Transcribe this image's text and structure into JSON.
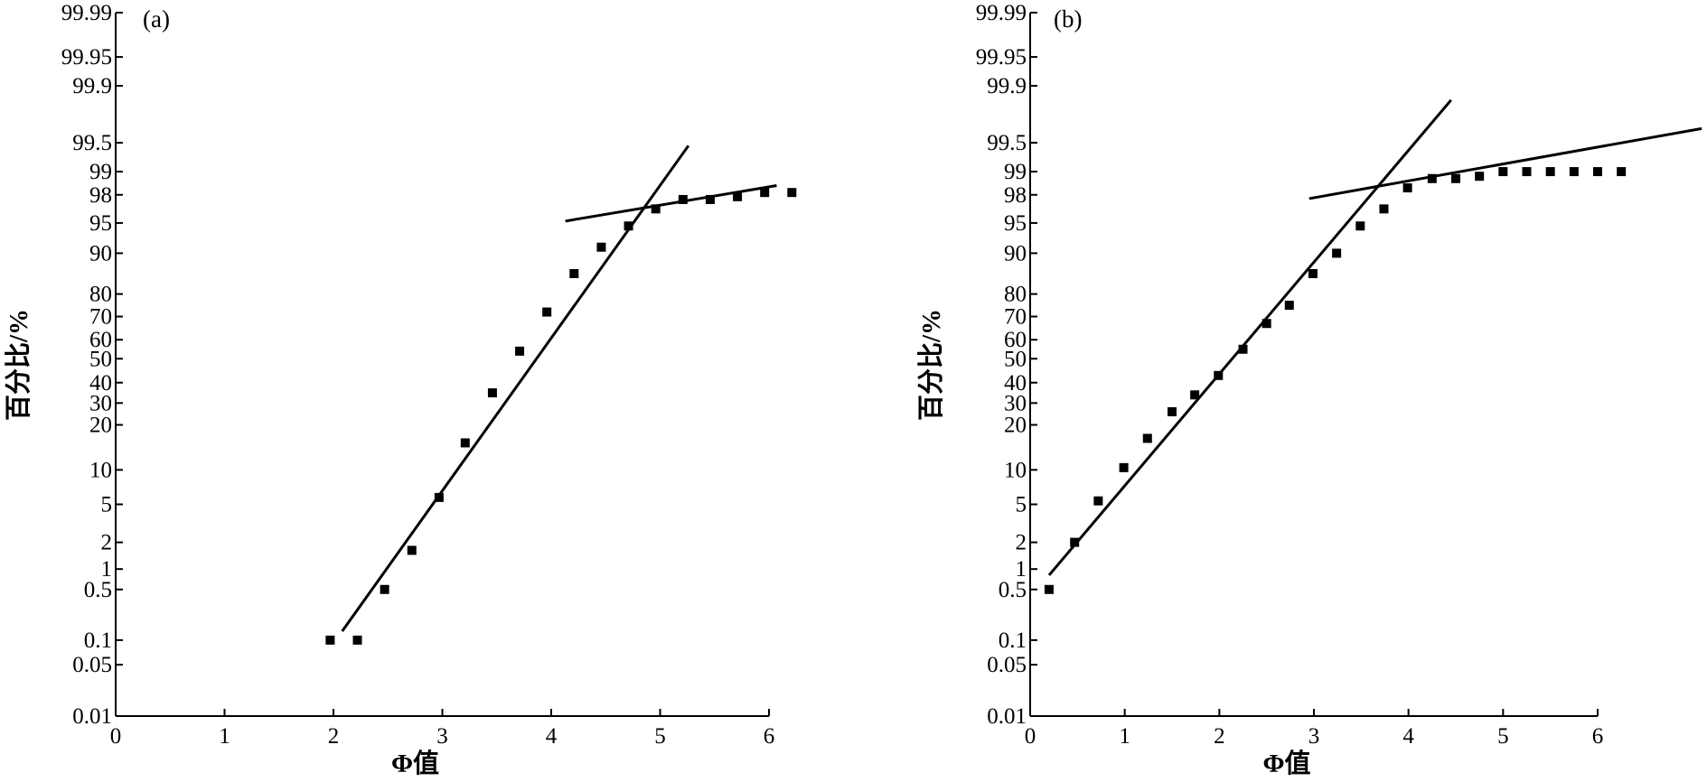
{
  "chart_data": [
    {
      "type": "scatter",
      "panel_label": "(a)",
      "xlabel": "Φ值",
      "ylabel": "百分比/%",
      "xlim": [
        0,
        6
      ],
      "y_scale": "probability",
      "x_ticks": [
        "0",
        "1",
        "2",
        "3",
        "4",
        "5",
        "6"
      ],
      "y_ticks": [
        "0.01",
        "0.05",
        "0.1",
        "0.5",
        "1",
        "2",
        "5",
        "10",
        "20",
        "30",
        "40",
        "50",
        "60",
        "70",
        "80",
        "90",
        "95",
        "98",
        "99",
        "99.5",
        "99.9",
        "99.95",
        "99.99"
      ],
      "points": [
        {
          "x": 1.97,
          "y": 0.1
        },
        {
          "x": 2.22,
          "y": 0.1
        },
        {
          "x": 2.47,
          "y": 0.5
        },
        {
          "x": 2.72,
          "y": 1.7
        },
        {
          "x": 2.97,
          "y": 6
        },
        {
          "x": 3.21,
          "y": 16
        },
        {
          "x": 3.46,
          "y": 35
        },
        {
          "x": 3.71,
          "y": 54
        },
        {
          "x": 3.96,
          "y": 72
        },
        {
          "x": 4.21,
          "y": 85
        },
        {
          "x": 4.46,
          "y": 91
        },
        {
          "x": 4.71,
          "y": 94.5
        },
        {
          "x": 4.96,
          "y": 96.5
        },
        {
          "x": 5.21,
          "y": 97.5
        },
        {
          "x": 5.46,
          "y": 97.5
        },
        {
          "x": 5.71,
          "y": 97.8
        },
        {
          "x": 5.96,
          "y": 98.1
        },
        {
          "x": 6.21,
          "y": 98.1
        }
      ],
      "fit_lines": [
        {
          "x": [
            2.08,
            5.26
          ],
          "y": [
            0.17,
            99.45
          ]
        },
        {
          "x": 4.13,
          "y": 95.2,
          "x2": 6.07,
          "y2": 98.4
        }
      ]
    },
    {
      "type": "scatter",
      "panel_label": "(b)",
      "xlabel": "Φ值",
      "ylabel": "百分比/%",
      "xlim": [
        0,
        6
      ],
      "y_scale": "probability",
      "x_ticks": [
        "0",
        "1",
        "2",
        "3",
        "4",
        "5",
        "6"
      ],
      "y_ticks": [
        "0.01",
        "0.05",
        "0.1",
        "0.5",
        "1",
        "2",
        "5",
        "10",
        "20",
        "30",
        "40",
        "50",
        "60",
        "70",
        "80",
        "90",
        "95",
        "98",
        "99",
        "99.5",
        "99.9",
        "99.95",
        "99.99"
      ],
      "points": [
        {
          "x": 0.2,
          "y": 0.5
        },
        {
          "x": 0.47,
          "y": 2
        },
        {
          "x": 0.72,
          "y": 5.5
        },
        {
          "x": 0.99,
          "y": 10.5
        },
        {
          "x": 1.24,
          "y": 17
        },
        {
          "x": 1.5,
          "y": 26
        },
        {
          "x": 1.74,
          "y": 34
        },
        {
          "x": 1.99,
          "y": 43
        },
        {
          "x": 2.25,
          "y": 55
        },
        {
          "x": 2.5,
          "y": 67
        },
        {
          "x": 2.74,
          "y": 75
        },
        {
          "x": 2.99,
          "y": 85
        },
        {
          "x": 3.24,
          "y": 90
        },
        {
          "x": 3.49,
          "y": 94.5
        },
        {
          "x": 3.74,
          "y": 96.5
        },
        {
          "x": 3.99,
          "y": 98.3
        },
        {
          "x": 4.25,
          "y": 98.7
        },
        {
          "x": 4.5,
          "y": 98.7
        },
        {
          "x": 4.75,
          "y": 98.8
        },
        {
          "x": 5.0,
          "y": 99.0
        },
        {
          "x": 5.25,
          "y": 99.0
        },
        {
          "x": 5.5,
          "y": 99.0
        },
        {
          "x": 5.75,
          "y": 99.0
        },
        {
          "x": 6.0,
          "y": 99.0
        },
        {
          "x": 6.25,
          "y": 99.0
        }
      ],
      "fit_lines": [
        {
          "x": [
            0.2,
            4.45
          ],
          "y": [
            0.85,
            99.8
          ]
        },
        {
          "x": [
            2.95,
            7.1
          ],
          "y": [
            97.6,
            99.6
          ]
        }
      ]
    }
  ]
}
